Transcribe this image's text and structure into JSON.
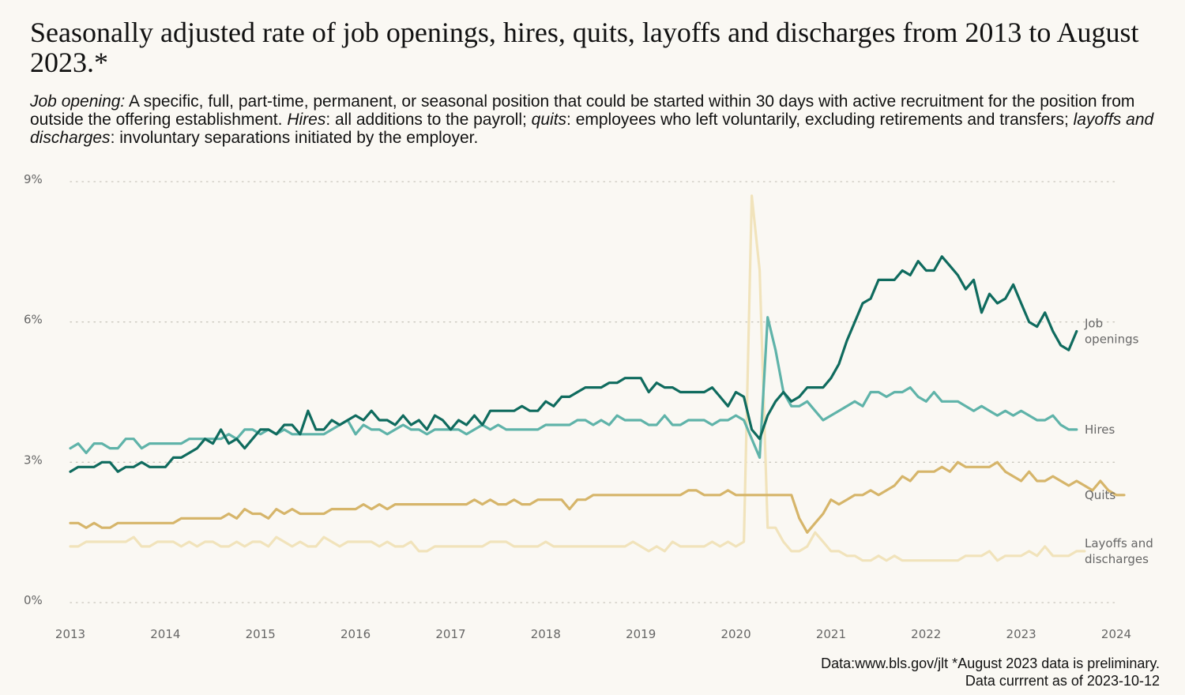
{
  "title": "Seasonally adjusted rate of job openings, hires, quits, layoffs and discharges from 2013 to August 2023.*",
  "subtitle": {
    "term1": "Job opening:",
    "text1": " A specific, full, part-time, permanent, or seasonal position that could be started within 30 days with active recruitment for the position from outside the offering establishment. ",
    "term2": "Hires",
    "text2": ": all additions to the payroll; ",
    "term3": "quits",
    "text3": ": employees who left voluntarily, excluding retirements and transfers; ",
    "term4": "layoffs and discharges",
    "text4": ": involuntary separations initiated by the employer."
  },
  "source": {
    "line1": "Data:www.bls.gov/jlt  *August 2023 data is preliminary.",
    "line2": "Data currrent as of 2023-10-12"
  },
  "chart_data": {
    "type": "line",
    "title": "Seasonally adjusted rate of job openings, hires, quits, layoffs and discharges from 2013 to August 2023.*",
    "xlabel": "",
    "ylabel": "",
    "x_start": "2013-01",
    "frequency": "monthly",
    "xlim": [
      2013,
      2024
    ],
    "ylim": [
      0,
      9
    ],
    "x_ticks": [
      "2013",
      "2014",
      "2015",
      "2016",
      "2017",
      "2018",
      "2019",
      "2020",
      "2021",
      "2022",
      "2023",
      "2024"
    ],
    "y_ticks": [
      "0%",
      "3%",
      "6%",
      "9%"
    ],
    "grid": "horizontal dotted",
    "series": [
      {
        "name": "Layoffs and discharges",
        "label_lines": [
          "Layoffs and",
          "discharges"
        ],
        "color": "#f1e3bb",
        "values": [
          1.2,
          1.2,
          1.3,
          1.3,
          1.3,
          1.3,
          1.3,
          1.3,
          1.4,
          1.2,
          1.2,
          1.3,
          1.3,
          1.3,
          1.2,
          1.3,
          1.2,
          1.3,
          1.3,
          1.2,
          1.2,
          1.3,
          1.2,
          1.3,
          1.3,
          1.2,
          1.4,
          1.3,
          1.2,
          1.3,
          1.2,
          1.2,
          1.4,
          1.3,
          1.2,
          1.3,
          1.3,
          1.3,
          1.3,
          1.2,
          1.3,
          1.2,
          1.2,
          1.3,
          1.1,
          1.1,
          1.2,
          1.2,
          1.2,
          1.2,
          1.2,
          1.2,
          1.2,
          1.3,
          1.3,
          1.3,
          1.2,
          1.2,
          1.2,
          1.2,
          1.3,
          1.2,
          1.2,
          1.2,
          1.2,
          1.2,
          1.2,
          1.2,
          1.2,
          1.2,
          1.2,
          1.3,
          1.2,
          1.1,
          1.2,
          1.1,
          1.3,
          1.2,
          1.2,
          1.2,
          1.2,
          1.3,
          1.2,
          1.3,
          1.2,
          1.3,
          8.7,
          7.1,
          1.6,
          1.6,
          1.3,
          1.1,
          1.1,
          1.2,
          1.5,
          1.3,
          1.1,
          1.1,
          1.0,
          1.0,
          0.9,
          0.9,
          1.0,
          0.9,
          1.0,
          0.9,
          0.9,
          0.9,
          0.9,
          0.9,
          0.9,
          0.9,
          0.9,
          1.0,
          1.0,
          1.0,
          1.1,
          0.9,
          1.0,
          1.0,
          1.0,
          1.1,
          1.0,
          1.2,
          1.0,
          1.0,
          1.0,
          1.1,
          1.1
        ]
      },
      {
        "name": "Quits",
        "label_lines": [
          "Quits"
        ],
        "color": "#d6b56a",
        "values": [
          1.7,
          1.7,
          1.6,
          1.7,
          1.6,
          1.6,
          1.7,
          1.7,
          1.7,
          1.7,
          1.7,
          1.7,
          1.7,
          1.7,
          1.8,
          1.8,
          1.8,
          1.8,
          1.8,
          1.8,
          1.9,
          1.8,
          2.0,
          1.9,
          1.9,
          1.8,
          2.0,
          1.9,
          2.0,
          1.9,
          1.9,
          1.9,
          1.9,
          2.0,
          2.0,
          2.0,
          2.0,
          2.1,
          2.0,
          2.1,
          2.0,
          2.1,
          2.1,
          2.1,
          2.1,
          2.1,
          2.1,
          2.1,
          2.1,
          2.1,
          2.1,
          2.2,
          2.1,
          2.2,
          2.1,
          2.1,
          2.2,
          2.1,
          2.1,
          2.2,
          2.2,
          2.2,
          2.2,
          2.0,
          2.2,
          2.2,
          2.3,
          2.3,
          2.3,
          2.3,
          2.3,
          2.3,
          2.3,
          2.3,
          2.3,
          2.3,
          2.3,
          2.3,
          2.4,
          2.4,
          2.3,
          2.3,
          2.3,
          2.4,
          2.3,
          2.3,
          2.3,
          2.3,
          2.3,
          2.3,
          2.3,
          2.3,
          1.8,
          1.5,
          1.7,
          1.9,
          2.2,
          2.1,
          2.2,
          2.3,
          2.3,
          2.4,
          2.3,
          2.4,
          2.5,
          2.7,
          2.6,
          2.8,
          2.8,
          2.8,
          2.9,
          2.8,
          3.0,
          2.9,
          2.9,
          2.9,
          2.9,
          3.0,
          2.8,
          2.7,
          2.6,
          2.8,
          2.6,
          2.6,
          2.7,
          2.6,
          2.5,
          2.6,
          2.5,
          2.4,
          2.6,
          2.4,
          2.3,
          2.3
        ]
      },
      {
        "name": "Hires",
        "label_lines": [
          "Hires"
        ],
        "color": "#5fb3a9",
        "values": [
          3.3,
          3.4,
          3.2,
          3.4,
          3.4,
          3.3,
          3.3,
          3.5,
          3.5,
          3.3,
          3.4,
          3.4,
          3.4,
          3.4,
          3.4,
          3.5,
          3.5,
          3.5,
          3.5,
          3.5,
          3.6,
          3.5,
          3.7,
          3.7,
          3.6,
          3.7,
          3.6,
          3.7,
          3.6,
          3.6,
          3.6,
          3.6,
          3.6,
          3.7,
          3.8,
          3.9,
          3.6,
          3.8,
          3.7,
          3.7,
          3.6,
          3.7,
          3.8,
          3.7,
          3.7,
          3.6,
          3.7,
          3.7,
          3.7,
          3.7,
          3.6,
          3.7,
          3.8,
          3.7,
          3.8,
          3.7,
          3.7,
          3.7,
          3.7,
          3.7,
          3.8,
          3.8,
          3.8,
          3.8,
          3.9,
          3.9,
          3.8,
          3.9,
          3.8,
          4.0,
          3.9,
          3.9,
          3.9,
          3.8,
          3.8,
          4.0,
          3.8,
          3.8,
          3.9,
          3.9,
          3.9,
          3.8,
          3.9,
          3.9,
          4.0,
          3.9,
          3.5,
          3.1,
          6.1,
          5.4,
          4.5,
          4.2,
          4.2,
          4.3,
          4.1,
          3.9,
          4.0,
          4.1,
          4.2,
          4.3,
          4.2,
          4.5,
          4.5,
          4.4,
          4.5,
          4.5,
          4.6,
          4.4,
          4.3,
          4.5,
          4.3,
          4.3,
          4.3,
          4.2,
          4.1,
          4.2,
          4.1,
          4.0,
          4.1,
          4.0,
          4.1,
          4.0,
          3.9,
          3.9,
          4.0,
          3.8,
          3.7,
          3.7
        ]
      },
      {
        "name": "Job openings",
        "label_lines": [
          "Job",
          "openings"
        ],
        "color": "#0f6b5e",
        "values": [
          2.8,
          2.9,
          2.9,
          2.9,
          3.0,
          3.0,
          2.8,
          2.9,
          2.9,
          3.0,
          2.9,
          2.9,
          2.9,
          3.1,
          3.1,
          3.2,
          3.3,
          3.5,
          3.4,
          3.7,
          3.4,
          3.5,
          3.3,
          3.5,
          3.7,
          3.7,
          3.6,
          3.8,
          3.8,
          3.6,
          4.1,
          3.7,
          3.7,
          3.9,
          3.8,
          3.9,
          4.0,
          3.9,
          4.1,
          3.9,
          3.9,
          3.8,
          4.0,
          3.8,
          3.9,
          3.7,
          4.0,
          3.9,
          3.7,
          3.9,
          3.8,
          4.0,
          3.8,
          4.1,
          4.1,
          4.1,
          4.1,
          4.2,
          4.1,
          4.1,
          4.3,
          4.2,
          4.4,
          4.4,
          4.5,
          4.6,
          4.6,
          4.6,
          4.7,
          4.7,
          4.8,
          4.8,
          4.8,
          4.5,
          4.7,
          4.6,
          4.6,
          4.5,
          4.5,
          4.5,
          4.5,
          4.6,
          4.4,
          4.2,
          4.5,
          4.4,
          3.7,
          3.5,
          4.0,
          4.3,
          4.5,
          4.3,
          4.4,
          4.6,
          4.6,
          4.6,
          4.8,
          5.1,
          5.6,
          6.0,
          6.4,
          6.5,
          6.9,
          6.9,
          6.9,
          7.1,
          7.0,
          7.3,
          7.1,
          7.1,
          7.4,
          7.2,
          7.0,
          6.7,
          6.9,
          6.2,
          6.6,
          6.4,
          6.5,
          6.8,
          6.4,
          6.0,
          5.9,
          6.2,
          5.8,
          5.5,
          5.4,
          5.8
        ]
      }
    ]
  }
}
